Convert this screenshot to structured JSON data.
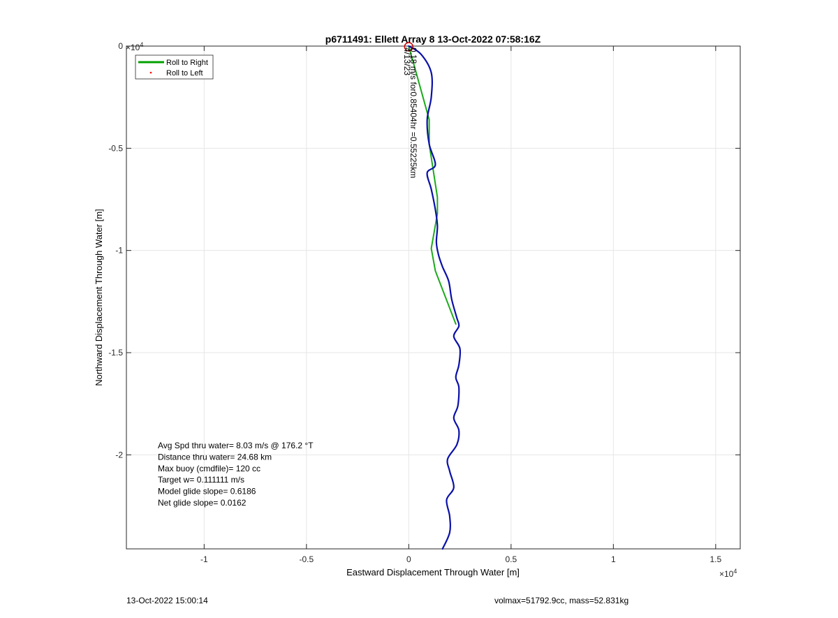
{
  "chart_data": {
    "type": "line",
    "title": "p6711491: Ellett Array 8 13-Oct-2022 07:58:16Z",
    "xlabel": "Eastward Displacement Through Water [m]",
    "ylabel": "Northward Displacement Through Water [m]",
    "x_exponent_label": "×10",
    "x_exponent_power": "4",
    "y_exponent_label": "×10",
    "y_exponent_power": "4",
    "xlim": [
      -13800,
      16200
    ],
    "ylim": [
      -24600,
      0
    ],
    "xticks": [
      -10000,
      -5000,
      0,
      5000,
      10000,
      15000
    ],
    "xtick_labels": [
      "-1",
      "-0.5",
      "0",
      "0.5",
      "1",
      "1.5"
    ],
    "yticks": [
      0,
      -5000,
      -10000,
      -15000,
      -20000
    ],
    "ytick_labels": [
      "0",
      "-0.5",
      "-1",
      "-1.5",
      "-2"
    ],
    "grid": true,
    "legend_position": "top-left",
    "legend": [
      {
        "label": "Roll to Right",
        "color": "#00a000",
        "marker": "line"
      },
      {
        "label": "Roll to Left",
        "color": "#ff0000",
        "marker": "dot"
      }
    ],
    "series": [
      {
        "name": "Roll to Right",
        "color": "#1aaa1a",
        "x": [
          0,
          1000,
          1000,
          1400,
          1400,
          1100,
          1300,
          2300
        ],
        "y": [
          0,
          -3600,
          -4800,
          -7400,
          -8200,
          -9900,
          -11000,
          -13600
        ]
      },
      {
        "color": "#0a10a8",
        "x": [
          0,
          600,
          1100,
          1100,
          900,
          1000,
          1300,
          900,
          1100,
          1300,
          1400,
          1350,
          1450,
          1650,
          1950,
          2100,
          2350,
          2450,
          2200,
          2500,
          2450,
          2300,
          2450,
          2400,
          2200,
          2450,
          2350,
          1900,
          2000,
          2200,
          1850,
          2000,
          2000,
          1650
        ],
        "y": [
          0,
          -400,
          -1300,
          -2500,
          -3600,
          -4800,
          -5800,
          -6200,
          -7000,
          -8000,
          -8800,
          -9600,
          -10200,
          -10800,
          -11500,
          -12400,
          -13300,
          -13700,
          -14200,
          -14800,
          -15600,
          -16200,
          -16700,
          -17600,
          -18200,
          -18800,
          -19500,
          -20200,
          -20800,
          -21600,
          -22200,
          -23000,
          -23800,
          -24600
        ]
      }
    ],
    "start_marker": {
      "x": 0,
      "y": 0,
      "color": "#cc0000"
    },
    "annotation_vertical": "0.18 m/s for0.85404hr =0.55225km",
    "annotation_overlap": "4/13/23",
    "stats_lines": [
      "Avg Spd thru water=  8.03 m/s @ 176.2 °T",
      "Distance thru water= 24.68 km",
      "Max buoy (cmdfile)= 120 cc",
      "Target w= 0.111111 m/s",
      "Model glide slope= 0.6186",
      "Net glide slope= 0.0162"
    ]
  },
  "footer": {
    "timestamp": "13-Oct-2022 15:00:14",
    "mass_info": "volmax=51792.9cc, mass=52.831kg"
  },
  "colors": {
    "grid": "#e6e6e6",
    "axes": "#262626",
    "track": "#0a10a8",
    "roll_right": "#1aaa1a"
  }
}
